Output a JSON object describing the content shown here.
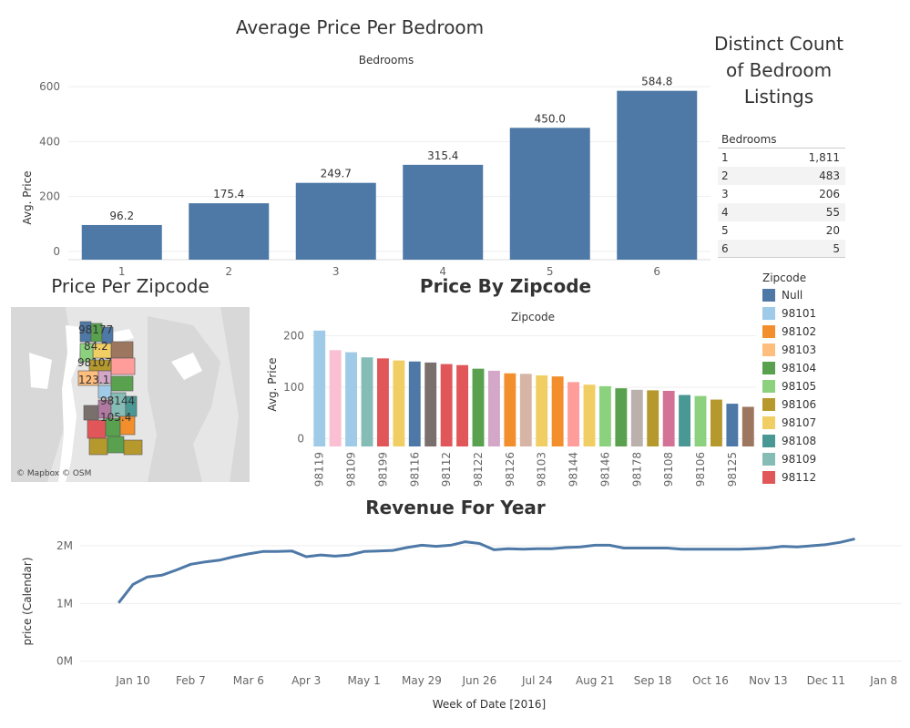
{
  "bedroom_chart": {
    "title": "Average Price Per Bedroom",
    "column_header": "Bedrooms",
    "ylabel": "Avg. Price",
    "y_ticks": [
      "600",
      "400",
      "200",
      "0"
    ]
  },
  "count_table": {
    "title_lines": [
      "Distinct Count",
      "of Bedroom",
      "Listings"
    ],
    "header": "Bedrooms",
    "rows": [
      {
        "bedrooms": "1",
        "count": "1,811"
      },
      {
        "bedrooms": "2",
        "count": "483"
      },
      {
        "bedrooms": "3",
        "count": "206"
      },
      {
        "bedrooms": "4",
        "count": "55"
      },
      {
        "bedrooms": "5",
        "count": "20"
      },
      {
        "bedrooms": "6",
        "count": "5"
      }
    ]
  },
  "map": {
    "title": "Price Per Zipcode",
    "labels": [
      "98177",
      "84.2",
      "98107",
      "123.1",
      "98144",
      "105.4"
    ],
    "attribution": "© Mapbox © OSM"
  },
  "zip_chart": {
    "title": "Price By Zipcode",
    "column_header": "Zipcode",
    "ylabel": "Avg. Price",
    "y_ticks": [
      "200",
      "100",
      "0"
    ],
    "legend_title": "Zipcode",
    "legend": [
      {
        "name": "Null",
        "color": "#4e79a7"
      },
      {
        "name": "98101",
        "color": "#a0cbe8"
      },
      {
        "name": "98102",
        "color": "#f28e2b"
      },
      {
        "name": "98103",
        "color": "#ffbe7d"
      },
      {
        "name": "98104",
        "color": "#59a14f"
      },
      {
        "name": "98105",
        "color": "#8cd17d"
      },
      {
        "name": "98106",
        "color": "#b6992d"
      },
      {
        "name": "98107",
        "color": "#f1ce63"
      },
      {
        "name": "98108",
        "color": "#499894"
      },
      {
        "name": "98109",
        "color": "#86bcb6"
      },
      {
        "name": "98112",
        "color": "#e15759"
      }
    ]
  },
  "revenue_chart": {
    "title": "Revenue For Year",
    "ylabel": "price (Calendar)",
    "xlabel": "Week of Date [2016]",
    "y_ticks": [
      "2M",
      "1M",
      "0M"
    ],
    "x_ticks": [
      "Jan 10",
      "Feb 7",
      "Mar 6",
      "Apr 3",
      "May 1",
      "May 29",
      "Jun 26",
      "Jul 24",
      "Aug 21",
      "Sep 18",
      "Oct 16",
      "Nov 13",
      "Dec 11",
      "Jan 8"
    ]
  },
  "chart_data": [
    {
      "type": "bar",
      "title": "Average Price Per Bedroom",
      "xlabel": "Bedrooms",
      "ylabel": "Avg. Price",
      "categories": [
        "1",
        "2",
        "3",
        "4",
        "5",
        "6"
      ],
      "values": [
        96.2,
        175.4,
        249.7,
        315.4,
        450.0,
        584.8
      ],
      "data_labels": [
        "96.2",
        "175.4",
        "249.7",
        "315.4",
        "450.0",
        "584.8"
      ],
      "ylim": [
        -30,
        650
      ],
      "color": "#4e79a7",
      "grid": true
    },
    {
      "type": "table",
      "title": "Distinct Count of Bedroom Listings",
      "columns": [
        "Bedrooms",
        "Count"
      ],
      "rows": [
        [
          "1",
          1811
        ],
        [
          "2",
          483
        ],
        [
          "3",
          206
        ],
        [
          "4",
          55
        ],
        [
          "5",
          20
        ],
        [
          "6",
          5
        ]
      ]
    },
    {
      "type": "bar",
      "title": "Price By Zipcode",
      "xlabel": "Zipcode",
      "ylabel": "Avg. Price",
      "categories": [
        "98119",
        "",
        "98109",
        "",
        "98199",
        "",
        "98116",
        "",
        "98112",
        "",
        "98122",
        "",
        "98126",
        "",
        "98103",
        "",
        "98144",
        "",
        "98146",
        "",
        "98178",
        "",
        "98108",
        "",
        "98106",
        "",
        "98125",
        ""
      ],
      "values": [
        210,
        172,
        168,
        158,
        156,
        152,
        150,
        148,
        145,
        143,
        136,
        132,
        127,
        126,
        123,
        121,
        110,
        105,
        102,
        98,
        95,
        94,
        93,
        85,
        83,
        76,
        68,
        62
      ],
      "colors": [
        "#a0cbe8",
        "#fabfd2",
        "#a0cbe8",
        "#86bcb6",
        "#e15759",
        "#f1ce63",
        "#4e79a7",
        "#79706e",
        "#e15759",
        "#e15759",
        "#59a14f",
        "#d4a6c8",
        "#f28e2b",
        "#d7b5a6",
        "#f1ce63",
        "#f28e2b",
        "#ff9d9a",
        "#f1ce63",
        "#8cd17d",
        "#59a14f",
        "#bab0ac",
        "#b6992d",
        "#d37295",
        "#499894",
        "#8cd17d",
        "#b6992d",
        "#4e79a7",
        "#9d7660"
      ],
      "ylim": [
        -15,
        215
      ],
      "grid": true
    },
    {
      "type": "line",
      "title": "Revenue For Year",
      "xlabel": "Week of Date [2016]",
      "ylabel": "price (Calendar)",
      "x": [
        "2016-01-03",
        "2016-01-10",
        "2016-01-17",
        "2016-01-24",
        "2016-01-31",
        "2016-02-07",
        "2016-02-14",
        "2016-02-21",
        "2016-02-28",
        "2016-03-06",
        "2016-03-13",
        "2016-03-20",
        "2016-03-27",
        "2016-04-03",
        "2016-04-10",
        "2016-04-17",
        "2016-04-24",
        "2016-05-01",
        "2016-05-08",
        "2016-05-15",
        "2016-05-22",
        "2016-05-29",
        "2016-06-05",
        "2016-06-12",
        "2016-06-19",
        "2016-06-26",
        "2016-07-03",
        "2016-07-10",
        "2016-07-17",
        "2016-07-24",
        "2016-07-31",
        "2016-08-07",
        "2016-08-14",
        "2016-08-21",
        "2016-08-28",
        "2016-09-04",
        "2016-09-11",
        "2016-09-18",
        "2016-09-25",
        "2016-10-02",
        "2016-10-09",
        "2016-10-16",
        "2016-10-23",
        "2016-10-30",
        "2016-11-06",
        "2016-11-13",
        "2016-11-20",
        "2016-11-27",
        "2016-12-04",
        "2016-12-11",
        "2016-12-18",
        "2016-12-25"
      ],
      "y": [
        1010000,
        1330000,
        1460000,
        1490000,
        1580000,
        1680000,
        1720000,
        1750000,
        1810000,
        1860000,
        1900000,
        1900000,
        1910000,
        1810000,
        1840000,
        1820000,
        1840000,
        1900000,
        1910000,
        1920000,
        1970000,
        2010000,
        1990000,
        2010000,
        2070000,
        2040000,
        1930000,
        1950000,
        1940000,
        1950000,
        1950000,
        1970000,
        1980000,
        2010000,
        2010000,
        1960000,
        1960000,
        1960000,
        1960000,
        1940000,
        1940000,
        1940000,
        1940000,
        1940000,
        1950000,
        1960000,
        1990000,
        1980000,
        2000000,
        2020000,
        2060000,
        2120000
      ],
      "ylim": [
        -100000,
        2300000
      ],
      "color": "#4e79a7",
      "grid": true
    }
  ]
}
